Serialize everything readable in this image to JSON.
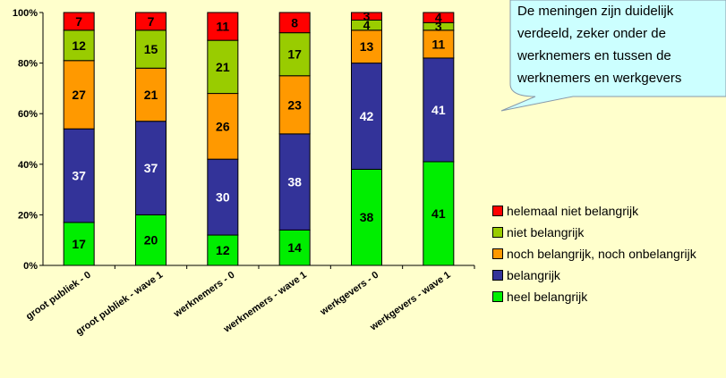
{
  "chart_data": {
    "type": "bar",
    "stacked": true,
    "percent": true,
    "categories": [
      "groot publiek - 0",
      "groot publiek - wave 1",
      "werknemers - 0",
      "werknemers - wave 1",
      "werkgevers - 0",
      "werkgevers - wave 1"
    ],
    "series": [
      {
        "name": "heel belangrijk",
        "color": "#00EE00",
        "values": [
          17,
          20,
          12,
          14,
          38,
          41
        ]
      },
      {
        "name": "belangrijk",
        "color": "#333399",
        "values": [
          37,
          37,
          30,
          38,
          42,
          41
        ]
      },
      {
        "name": "noch belangrijk, noch onbelangrijk",
        "color": "#FF9900",
        "values": [
          27,
          21,
          26,
          23,
          13,
          11
        ]
      },
      {
        "name": "niet belangrijk",
        "color": "#99CC00",
        "values": [
          12,
          15,
          21,
          17,
          4,
          3
        ]
      },
      {
        "name": "helemaal niet belangrijk",
        "color": "#FF0000",
        "values": [
          7,
          7,
          11,
          8,
          3,
          4
        ]
      }
    ],
    "yticks": [
      "0%",
      "20%",
      "40%",
      "60%",
      "80%",
      "100%"
    ],
    "ylim": [
      0,
      100
    ],
    "legend_position": "right"
  },
  "callout": {
    "lines": [
      "De meningen zijn duidelijk",
      "verdeeld, zeker onder de",
      "werknemers en tussen de",
      "werknemers en werkgevers"
    ]
  },
  "legend": {
    "items": [
      "helemaal niet belangrijk",
      "niet belangrijk",
      "noch belangrijk, noch onbelangrijk",
      "belangrijk",
      "heel belangrijk"
    ],
    "colors": [
      "#FF0000",
      "#99CC00",
      "#FF9900",
      "#333399",
      "#00EE00"
    ]
  }
}
